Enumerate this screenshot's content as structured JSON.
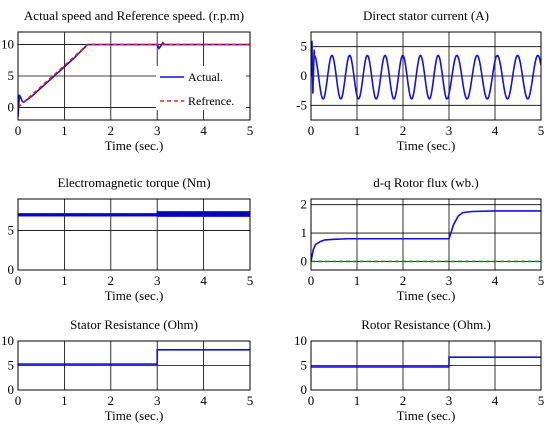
{
  "colors": {
    "primary": "#1010e8",
    "secondary": "#e02020",
    "tertiary": "#1a8a1a"
  },
  "chart_data": [
    {
      "type": "line",
      "title": "Actual speed and Reference speed. (r.p.m)",
      "xlabel": "Time (sec.)",
      "xlim": [
        0,
        5
      ],
      "ylim": [
        -2,
        12
      ],
      "xticks": [
        0,
        1,
        2,
        3,
        4,
        5
      ],
      "yticks": [
        0,
        5,
        10
      ],
      "grid": true,
      "legend": {
        "placement": "inside-right"
      },
      "series": [
        {
          "name": "Actual.",
          "style": "solid",
          "colorKey": "primary",
          "x": [
            0,
            0.03,
            0.06,
            0.09,
            0.12,
            0.3,
            0.6,
            0.9,
            1.2,
            1.5,
            2.0,
            2.5,
            3.0,
            3.04,
            3.08,
            3.12,
            3.16,
            3.25,
            4.0,
            5.0
          ],
          "y": [
            -1.5,
            2.0,
            1.5,
            1.0,
            0.8,
            1.8,
            3.8,
            5.8,
            7.8,
            10.0,
            10.0,
            10.0,
            10.0,
            9.4,
            9.8,
            10.3,
            10.0,
            10.0,
            10.0,
            10.0
          ]
        },
        {
          "name": "Refrence.",
          "style": "dashed",
          "colorKey": "secondary",
          "x": [
            0,
            1.5,
            5.0
          ],
          "y": [
            0,
            10,
            10
          ]
        }
      ]
    },
    {
      "type": "line",
      "title": "Direct stator current (A)",
      "xlabel": "Time (sec.)",
      "xlim": [
        0,
        5
      ],
      "ylim": [
        -7.5,
        7.5
      ],
      "xticks": [
        0,
        1,
        2,
        3,
        4,
        5
      ],
      "yticks": [
        -5,
        0,
        5
      ],
      "grid": true,
      "series": [
        {
          "colorKey": "primary",
          "form": "sinusoid",
          "amplitude": 3.7,
          "offset": -0.2,
          "period_early": 0.385,
          "period_late": 0.44,
          "switch_time": 3.0,
          "startup_spike": [
            [
              0,
              0
            ],
            [
              0.02,
              6.0
            ],
            [
              0.04,
              -3.0
            ],
            [
              0.07,
              4.5
            ]
          ]
        }
      ]
    },
    {
      "type": "line",
      "title": "Electromagnetic torque (Nm)",
      "xlabel": "Time (sec.)",
      "xlim": [
        0,
        5
      ],
      "ylim": [
        0,
        9
      ],
      "xticks": [
        0,
        1,
        2,
        3,
        4,
        5
      ],
      "yticks": [
        0,
        5
      ],
      "grid": true,
      "series": [
        {
          "colorKey": "primary",
          "form": "ripple_band",
          "x": [
            0,
            3.0,
            3.0,
            5.0
          ],
          "y_center": [
            7.0,
            7.0,
            7.1,
            7.1
          ],
          "band": [
            0.15,
            0.15,
            0.3,
            0.3
          ]
        }
      ]
    },
    {
      "type": "line",
      "title": "d-q Rotor flux (wb.)",
      "xlabel": "Time (sec.)",
      "xlim": [
        0,
        5
      ],
      "ylim": [
        -0.3,
        2.2
      ],
      "xticks": [
        0,
        1,
        2,
        3,
        4,
        5
      ],
      "yticks": [
        0,
        1,
        2
      ],
      "grid": true,
      "series": [
        {
          "colorKey": "primary",
          "style": "solid",
          "x": [
            0,
            0.05,
            0.1,
            0.2,
            0.3,
            0.5,
            0.8,
            1.0,
            2.0,
            3.0,
            3.05,
            3.1,
            3.2,
            3.3,
            3.5,
            4.0,
            5.0
          ],
          "y": [
            0,
            0.42,
            0.6,
            0.7,
            0.76,
            0.78,
            0.8,
            0.8,
            0.8,
            0.8,
            1.05,
            1.3,
            1.6,
            1.72,
            1.76,
            1.78,
            1.78
          ]
        },
        {
          "colorKey": "tertiary",
          "style": "dashed",
          "x": [
            0,
            5.0
          ],
          "y": [
            0,
            0
          ]
        }
      ]
    },
    {
      "type": "line",
      "title": "Stator Resistance (Ohm)",
      "xlabel": "Time (sec.)",
      "xlim": [
        0,
        5
      ],
      "ylim": [
        0,
        10
      ],
      "xticks": [
        0,
        1,
        2,
        3,
        4,
        5
      ],
      "yticks": [
        0,
        5,
        10
      ],
      "grid": true,
      "series": [
        {
          "colorKey": "primary",
          "style": "solid",
          "x": [
            0,
            3.0,
            3.0,
            5.0
          ],
          "y": [
            5.3,
            5.3,
            8.2,
            8.2
          ]
        }
      ]
    },
    {
      "type": "line",
      "title": "Rotor Resistance (Ohm.)",
      "xlabel": "Time (sec.)",
      "xlim": [
        0,
        5
      ],
      "ylim": [
        0,
        10
      ],
      "xticks": [
        0,
        1,
        2,
        3,
        4,
        5
      ],
      "yticks": [
        0,
        5,
        10
      ],
      "grid": true,
      "series": [
        {
          "colorKey": "primary",
          "style": "solid",
          "x": [
            0,
            3.0,
            3.0,
            5.0
          ],
          "y": [
            4.7,
            4.7,
            6.7,
            6.7
          ]
        }
      ]
    }
  ]
}
